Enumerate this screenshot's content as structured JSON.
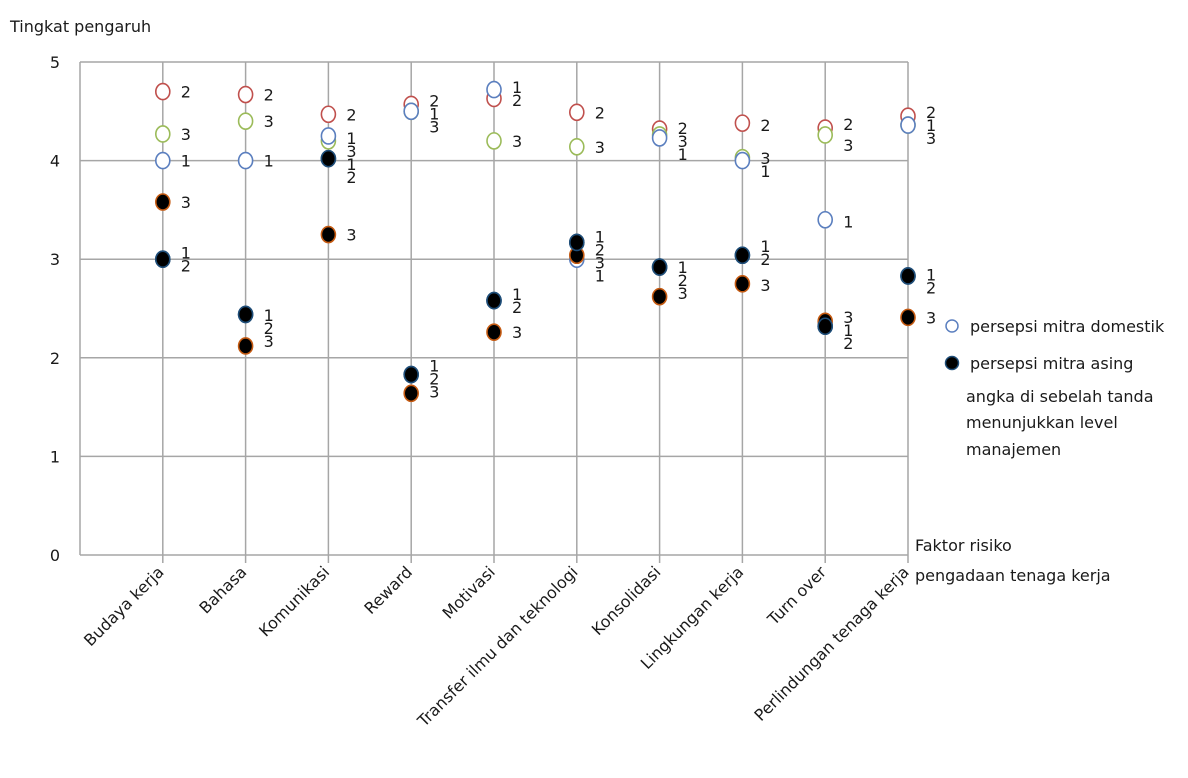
{
  "chart_data": {
    "type": "scatter",
    "ylabel": "Tingkat pengaruh",
    "xlabel_line1": "Faktor risiko",
    "xlabel_line2": "pengadaan tenaga kerja",
    "ylim": [
      0,
      5
    ],
    "yticks": [
      "0",
      "1",
      "2",
      "3",
      "4",
      "5"
    ],
    "grid": true,
    "categories": [
      "Budaya kerja",
      "Bahasa",
      "Komunikasi",
      "Reward",
      "Motivasi",
      "Transfer ilmu dan teknologi",
      "Konsolidasi",
      "Lingkungan kerja",
      "Turn over",
      "Perlindungan tenaga kerja"
    ],
    "legend": {
      "domestic": "persepsi mitra domestik",
      "foreign": "persepsi mitra asing",
      "note": [
        "angka di sebelah tanda",
        "menunjukkan level",
        "manajemen"
      ]
    },
    "colors": {
      "domestic_level_1": "#5b7fbf",
      "domestic_level_2": "#c0504d",
      "domestic_level_3": "#9bbb59",
      "foreign_fill": "#000000",
      "foreign_level_1_outline": "#1f4e79",
      "foreign_level_2_outline": "#1f4e79",
      "foreign_level_3_outline": "#c55a11",
      "grid": "#a6a6a6"
    },
    "points": [
      {
        "cat": 0,
        "group": "domestic",
        "level": "1",
        "y": 4.0
      },
      {
        "cat": 0,
        "group": "domestic",
        "level": "2",
        "y": 4.7
      },
      {
        "cat": 0,
        "group": "domestic",
        "level": "3",
        "y": 4.27
      },
      {
        "cat": 0,
        "group": "foreign",
        "level": "1",
        "y": 3.0
      },
      {
        "cat": 0,
        "group": "foreign",
        "level": "2",
        "y": 3.0
      },
      {
        "cat": 0,
        "group": "foreign",
        "level": "3",
        "y": 3.58
      },
      {
        "cat": 1,
        "group": "domestic",
        "level": "1",
        "y": 4.0
      },
      {
        "cat": 1,
        "group": "domestic",
        "level": "2",
        "y": 4.67
      },
      {
        "cat": 1,
        "group": "domestic",
        "level": "3",
        "y": 4.4
      },
      {
        "cat": 1,
        "group": "foreign",
        "level": "1",
        "y": 2.44
      },
      {
        "cat": 1,
        "group": "foreign",
        "level": "2",
        "y": 2.44
      },
      {
        "cat": 1,
        "group": "foreign",
        "level": "3",
        "y": 2.12
      },
      {
        "cat": 2,
        "group": "domestic",
        "level": "1",
        "y": 4.25
      },
      {
        "cat": 2,
        "group": "domestic",
        "level": "2",
        "y": 4.47
      },
      {
        "cat": 2,
        "group": "domestic",
        "level": "3",
        "y": 4.2
      },
      {
        "cat": 2,
        "group": "foreign",
        "level": "1",
        "y": 4.02
      },
      {
        "cat": 2,
        "group": "foreign",
        "level": "2",
        "y": 4.02
      },
      {
        "cat": 2,
        "group": "foreign",
        "level": "3",
        "y": 3.25
      },
      {
        "cat": 3,
        "group": "domestic",
        "level": "1",
        "y": 4.5
      },
      {
        "cat": 3,
        "group": "domestic",
        "level": "2",
        "y": 4.57
      },
      {
        "cat": 3,
        "group": "domestic",
        "level": "3",
        "y": 4.5
      },
      {
        "cat": 3,
        "group": "foreign",
        "level": "1",
        "y": 1.83
      },
      {
        "cat": 3,
        "group": "foreign",
        "level": "2",
        "y": 1.83
      },
      {
        "cat": 3,
        "group": "foreign",
        "level": "3",
        "y": 1.64
      },
      {
        "cat": 4,
        "group": "domestic",
        "level": "1",
        "y": 4.72
      },
      {
        "cat": 4,
        "group": "domestic",
        "level": "2",
        "y": 4.63
      },
      {
        "cat": 4,
        "group": "domestic",
        "level": "3",
        "y": 4.2
      },
      {
        "cat": 4,
        "group": "foreign",
        "level": "1",
        "y": 2.58
      },
      {
        "cat": 4,
        "group": "foreign",
        "level": "2",
        "y": 2.58
      },
      {
        "cat": 4,
        "group": "foreign",
        "level": "3",
        "y": 2.26
      },
      {
        "cat": 5,
        "group": "domestic",
        "level": "1",
        "y": 3.0
      },
      {
        "cat": 5,
        "group": "domestic",
        "level": "2",
        "y": 4.49
      },
      {
        "cat": 5,
        "group": "domestic",
        "level": "3",
        "y": 4.14
      },
      {
        "cat": 5,
        "group": "foreign",
        "level": "1",
        "y": 3.17
      },
      {
        "cat": 5,
        "group": "foreign",
        "level": "2",
        "y": 3.17
      },
      {
        "cat": 5,
        "group": "foreign",
        "level": "3",
        "y": 3.04
      },
      {
        "cat": 6,
        "group": "domestic",
        "level": "1",
        "y": 4.23
      },
      {
        "cat": 6,
        "group": "domestic",
        "level": "2",
        "y": 4.32
      },
      {
        "cat": 6,
        "group": "domestic",
        "level": "3",
        "y": 4.26
      },
      {
        "cat": 6,
        "group": "foreign",
        "level": "1",
        "y": 2.92
      },
      {
        "cat": 6,
        "group": "foreign",
        "level": "2",
        "y": 2.92
      },
      {
        "cat": 6,
        "group": "foreign",
        "level": "3",
        "y": 2.62
      },
      {
        "cat": 7,
        "group": "domestic",
        "level": "1",
        "y": 4.0
      },
      {
        "cat": 7,
        "group": "domestic",
        "level": "2",
        "y": 4.38
      },
      {
        "cat": 7,
        "group": "domestic",
        "level": "3",
        "y": 4.03
      },
      {
        "cat": 7,
        "group": "foreign",
        "level": "1",
        "y": 3.04
      },
      {
        "cat": 7,
        "group": "foreign",
        "level": "2",
        "y": 3.04
      },
      {
        "cat": 7,
        "group": "foreign",
        "level": "3",
        "y": 2.75
      },
      {
        "cat": 8,
        "group": "domestic",
        "level": "1",
        "y": 3.4
      },
      {
        "cat": 8,
        "group": "domestic",
        "level": "2",
        "y": 4.33
      },
      {
        "cat": 8,
        "group": "domestic",
        "level": "3",
        "y": 4.26
      },
      {
        "cat": 8,
        "group": "foreign",
        "level": "1",
        "y": 2.32
      },
      {
        "cat": 8,
        "group": "foreign",
        "level": "2",
        "y": 2.32
      },
      {
        "cat": 8,
        "group": "foreign",
        "level": "3",
        "y": 2.37
      },
      {
        "cat": 9,
        "group": "domestic",
        "level": "1",
        "y": 4.36
      },
      {
        "cat": 9,
        "group": "domestic",
        "level": "2",
        "y": 4.45
      },
      {
        "cat": 9,
        "group": "domestic",
        "level": "3",
        "y": 4.36
      },
      {
        "cat": 9,
        "group": "foreign",
        "level": "1",
        "y": 2.83
      },
      {
        "cat": 9,
        "group": "foreign",
        "level": "2",
        "y": 2.83
      },
      {
        "cat": 9,
        "group": "foreign",
        "level": "3",
        "y": 2.41
      }
    ],
    "point_labels": [
      {
        "cat": 0,
        "lines": [
          "2"
        ],
        "y": 4.7
      },
      {
        "cat": 0,
        "lines": [
          "3"
        ],
        "y": 4.27
      },
      {
        "cat": 0,
        "lines": [
          "1"
        ],
        "y": 4.0
      },
      {
        "cat": 0,
        "lines": [
          "3"
        ],
        "y": 3.58
      },
      {
        "cat": 0,
        "lines": [
          "1",
          "2"
        ],
        "y": 3.0
      },
      {
        "cat": 1,
        "lines": [
          "2"
        ],
        "y": 4.67
      },
      {
        "cat": 1,
        "lines": [
          "3"
        ],
        "y": 4.4
      },
      {
        "cat": 1,
        "lines": [
          "1"
        ],
        "y": 4.0
      },
      {
        "cat": 1,
        "lines": [
          "1",
          "2",
          "3"
        ],
        "y": 2.3
      },
      {
        "cat": 2,
        "lines": [
          "2"
        ],
        "y": 4.47
      },
      {
        "cat": 2,
        "lines": [
          "1",
          "3",
          "1",
          "2"
        ],
        "y": 4.03
      },
      {
        "cat": 2,
        "lines": [
          "3"
        ],
        "y": 3.25
      },
      {
        "cat": 3,
        "lines": [
          "2",
          "1",
          "3"
        ],
        "y": 4.48
      },
      {
        "cat": 3,
        "lines": [
          "1",
          "2",
          "3"
        ],
        "y": 1.79
      },
      {
        "cat": 4,
        "lines": [
          "1",
          "2"
        ],
        "y": 4.68
      },
      {
        "cat": 4,
        "lines": [
          "3"
        ],
        "y": 4.2
      },
      {
        "cat": 4,
        "lines": [
          "1",
          "2"
        ],
        "y": 2.58
      },
      {
        "cat": 4,
        "lines": [
          "3"
        ],
        "y": 2.26
      },
      {
        "cat": 5,
        "lines": [
          "2"
        ],
        "y": 4.49
      },
      {
        "cat": 5,
        "lines": [
          "3"
        ],
        "y": 4.14
      },
      {
        "cat": 5,
        "lines": [
          "1",
          "2",
          "3",
          "1"
        ],
        "y": 3.03
      },
      {
        "cat": 6,
        "lines": [
          "2",
          "3",
          "1"
        ],
        "y": 4.2
      },
      {
        "cat": 6,
        "lines": [
          "1",
          "2",
          "3"
        ],
        "y": 2.79
      },
      {
        "cat": 7,
        "lines": [
          "2"
        ],
        "y": 4.36
      },
      {
        "cat": 7,
        "lines": [
          "3",
          "1"
        ],
        "y": 3.96
      },
      {
        "cat": 7,
        "lines": [
          "1",
          "2"
        ],
        "y": 3.07
      },
      {
        "cat": 7,
        "lines": [
          "3"
        ],
        "y": 2.74
      },
      {
        "cat": 8,
        "lines": [
          "2"
        ],
        "y": 4.37
      },
      {
        "cat": 8,
        "lines": [
          "3"
        ],
        "y": 4.16
      },
      {
        "cat": 8,
        "lines": [
          "1"
        ],
        "y": 3.38
      },
      {
        "cat": 8,
        "lines": [
          "3",
          "1",
          "2"
        ],
        "y": 2.28
      },
      {
        "cat": 9,
        "lines": [
          "2",
          "1",
          "3"
        ],
        "y": 4.36
      },
      {
        "cat": 9,
        "lines": [
          "1",
          "2"
        ],
        "y": 2.78
      },
      {
        "cat": 9,
        "lines": [
          "3"
        ],
        "y": 2.41
      }
    ]
  }
}
